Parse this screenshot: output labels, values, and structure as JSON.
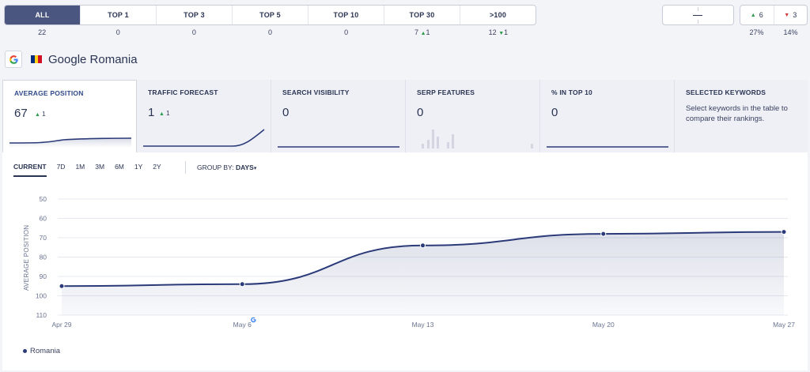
{
  "filters": {
    "buttons": [
      {
        "label": "ALL",
        "count": "22",
        "active": true
      },
      {
        "label": "TOP 1",
        "count": "0"
      },
      {
        "label": "TOP 3",
        "count": "0"
      },
      {
        "label": "TOP 5",
        "count": "0"
      },
      {
        "label": "TOP 10",
        "count": "0"
      },
      {
        "label": "TOP 30",
        "count": "7",
        "delta": "1",
        "delta_dir": "up"
      },
      {
        "label": ">100",
        "count": "12",
        "delta": "1",
        "delta_dir": "down-green"
      }
    ]
  },
  "selection": {
    "value": "–"
  },
  "changes": {
    "up": {
      "value": "6",
      "pct": "27%"
    },
    "down": {
      "value": "3",
      "pct": "14%"
    }
  },
  "header": {
    "title": "Google Romania",
    "flag_colors": [
      "#002b7f",
      "#fcd116",
      "#ce1126"
    ],
    "icon": "google-icon"
  },
  "cards": [
    {
      "label": "AVERAGE POSITION",
      "value": "67",
      "delta": "1"
    },
    {
      "label": "TRAFFIC FORECAST",
      "value": "1",
      "delta": "1"
    },
    {
      "label": "SEARCH VISIBILITY",
      "value": "0"
    },
    {
      "label": "SERP FEATURES",
      "value": "0"
    },
    {
      "label": "% IN TOP 10",
      "value": "0"
    },
    {
      "label": "SELECTED KEYWORDS",
      "description": "Select keywords in the table to compare their rankings."
    }
  ],
  "controls": {
    "ranges": [
      "CURRENT",
      "7D",
      "1M",
      "3M",
      "6M",
      "1Y",
      "2Y"
    ],
    "active_range": "CURRENT",
    "group_by_label": "GROUP BY:",
    "group_by_value": "DAYS"
  },
  "chart_data": {
    "type": "line",
    "ylabel": "AVERAGE POSITION",
    "y_ticks": [
      "50",
      "60",
      "70",
      "80",
      "90",
      "100",
      "110"
    ],
    "ylim": [
      110,
      50
    ],
    "inverted_y": true,
    "x_ticks": [
      "Apr 29",
      "May 6",
      "May 13",
      "May 20",
      "May 27"
    ],
    "series": [
      {
        "name": "Romania",
        "color": "#2b3a78",
        "points": [
          {
            "x": "Apr 29",
            "y": 95
          },
          {
            "x": "May 6",
            "y": 94
          },
          {
            "x": "May 13",
            "y": 74
          },
          {
            "x": "May 20",
            "y": 68
          },
          {
            "x": "May 27",
            "y": 67
          }
        ]
      }
    ],
    "annotation_icon": "google-update-icon",
    "annotation_x": "May 6",
    "legend_placement": "bottom-left"
  },
  "colors": {
    "accent": "#2b3a78",
    "up": "#2e9b4f",
    "down": "#d33a3a",
    "active_filter": "#4a5580"
  }
}
